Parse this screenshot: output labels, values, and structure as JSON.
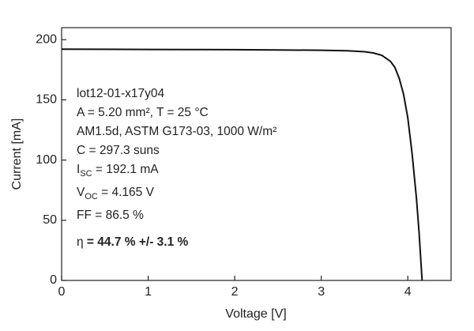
{
  "chart_data": {
    "type": "line",
    "xlabel": "Voltage [V]",
    "ylabel": "Current [mA]",
    "x": [
      0,
      0.5,
      1,
      1.5,
      2,
      2.5,
      3,
      3.3,
      3.5,
      3.6,
      3.7,
      3.8,
      3.85,
      3.9,
      3.95,
      4.0,
      4.05,
      4.1,
      4.13,
      4.165
    ],
    "values": [
      192.1,
      192,
      191.9,
      191.8,
      191.7,
      191.5,
      191.2,
      190.8,
      190,
      189,
      187,
      182,
      177,
      168,
      155,
      135,
      105,
      68,
      40,
      0
    ],
    "color": "#111111",
    "xlim": [
      0,
      4.5
    ],
    "ylim": [
      0,
      210
    ],
    "xticks": [
      0,
      1,
      2,
      3,
      4
    ],
    "yticks": [
      0,
      50,
      100,
      150,
      200
    ],
    "annotations": [
      [
        {
          "text": "lot12-01-x17y04",
          "style": "normal"
        }
      ],
      [
        {
          "text": "A = 5.20 mm², T = 25 °C",
          "style": "normal"
        }
      ],
      [
        {
          "text": "AM1.5d, ASTM G173-03, 1000 W/m²",
          "style": "normal"
        }
      ],
      [
        {
          "text": "C = 297.3 suns",
          "style": "normal"
        }
      ],
      [
        {
          "text": "I",
          "style": "normal"
        },
        {
          "text": "SC",
          "style": "sub"
        },
        {
          "text": " = 192.1 mA",
          "style": "normal"
        }
      ],
      [
        {
          "text": "V",
          "style": "normal"
        },
        {
          "text": "OC",
          "style": "sub"
        },
        {
          "text": " = 4.165 V",
          "style": "normal"
        }
      ],
      [
        {
          "text": "FF = 86.5 %",
          "style": "normal"
        }
      ],
      [
        {
          "text": "η",
          "style": "normal"
        },
        {
          "text": " = 44.7 % +/- 3.1 %",
          "style": "bold"
        }
      ]
    ]
  }
}
